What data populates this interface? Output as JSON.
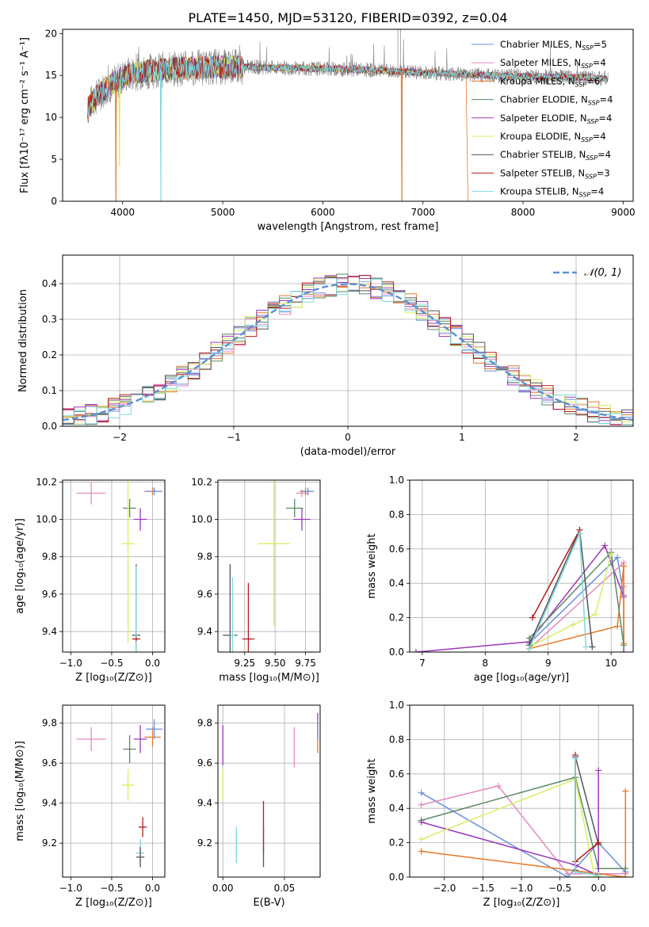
{
  "title": "PLATE=1450, MJD=53120, FIBERID=0392, z=0.04",
  "colors": {
    "chabrier_miles": "#6a8fdc",
    "salpeter_miles": "#e58ac0",
    "kroupa_miles": "#e67a2a",
    "chabrier_elodie": "#5c8a66",
    "salpeter_elodie": "#9a39b8",
    "kroupa_elodie": "#d7ef5e",
    "chabrier_stelib": "#555555",
    "salpeter_stelib": "#b81c1c",
    "kroupa_stelib": "#7ed8e0",
    "observed": "#808080",
    "normal": "#5b8fd6"
  },
  "chart_data": [
    {
      "id": "spectrum",
      "type": "line",
      "xlabel": "wavelength [Angstrom, rest frame]",
      "ylabel": "Flux [fλ10⁻¹⁷ erg cm⁻² s⁻¹ A⁻¹]",
      "xlim": [
        3400,
        9100
      ],
      "ylim": [
        0,
        20.5
      ],
      "xticks": [
        "4000",
        "5000",
        "6000",
        "7000",
        "8000",
        "9000"
      ],
      "yticks": [
        "0",
        "5",
        "10",
        "15",
        "20"
      ],
      "grid": false,
      "legend_position": "top-right",
      "legend": [
        {
          "label": "Chabrier MILES, N",
          "sub": "SSP",
          "tail": "=5",
          "color": "chabrier_miles"
        },
        {
          "label": "Salpeter MILES, N",
          "sub": "SSP",
          "tail": "=4",
          "color": "salpeter_miles"
        },
        {
          "label": "Kroupa MILES, N",
          "sub": "SSP",
          "tail": "=6",
          "color": "kroupa_miles"
        },
        {
          "label": "Chabrier ELODIE, N",
          "sub": "SSP",
          "tail": "=4",
          "color": "chabrier_elodie"
        },
        {
          "label": "Salpeter ELODIE, N",
          "sub": "SSP",
          "tail": "=4",
          "color": "salpeter_elodie"
        },
        {
          "label": "Kroupa ELODIE, N",
          "sub": "SSP",
          "tail": "=4",
          "color": "kroupa_elodie"
        },
        {
          "label": "Chabrier STELIB, N",
          "sub": "SSP",
          "tail": "=4",
          "color": "chabrier_stelib"
        },
        {
          "label": "Salpeter STELIB, N",
          "sub": "SSP",
          "tail": "=3",
          "color": "salpeter_stelib"
        },
        {
          "label": "Kroupa STELIB, N",
          "sub": "SSP",
          "tail": "=4",
          "color": "kroupa_stelib"
        }
      ],
      "continuum": {
        "x": [
          3650,
          3700,
          3800,
          3900,
          4000,
          4100,
          4300,
          4500,
          4700,
          4900,
          5100,
          5300,
          5500,
          5700,
          5900,
          6100,
          6300,
          6500,
          6700,
          6900,
          7100,
          7300,
          7500,
          7700,
          7900,
          8100,
          8300,
          8500,
          8700,
          8850
        ],
        "y": [
          11.0,
          12.0,
          13.2,
          14.0,
          14.8,
          15.3,
          15.6,
          15.8,
          15.9,
          16.0,
          16.0,
          16.0,
          15.9,
          15.9,
          15.8,
          15.8,
          15.7,
          15.6,
          15.5,
          15.4,
          15.3,
          15.2,
          15.1,
          15.0,
          14.9,
          14.9,
          14.8,
          14.8,
          14.7,
          14.6
        ]
      },
      "absorption_lines": [
        {
          "model": "kroupa_miles",
          "x": 3933,
          "y_min": 0
        },
        {
          "model": "kroupa_elodie",
          "x": 3970,
          "y_min": 4.2
        },
        {
          "model": "kroupa_stelib",
          "x": 4382,
          "y_min": 0
        },
        {
          "model": "kroupa_miles",
          "x": 6790,
          "y_min": 0
        }
      ],
      "cutoffs": [
        {
          "model": "kroupa_miles",
          "x": 7430
        }
      ]
    },
    {
      "id": "residuals",
      "type": "line",
      "xlabel": "(data-model)/error",
      "ylabel": "Normed distribution",
      "xlim": [
        -2.5,
        2.5
      ],
      "ylim": [
        0,
        0.48
      ],
      "xticks": [
        "−2",
        "−1",
        "0",
        "1",
        "2"
      ],
      "yticks": [
        "0.0",
        "0.1",
        "0.2",
        "0.3",
        "0.4"
      ],
      "grid": true,
      "legend_position": "top-right",
      "legend_label": "𝒩(0, 1)",
      "bin_width": 0.1,
      "normal_curve": {
        "mean": 0,
        "sigma": 1
      }
    },
    {
      "id": "age_vs_Z",
      "type": "scatter",
      "xlabel": "Z [log₁₀(Z/Z⊙)]",
      "ylabel": "age  [log₁₀(age/yr)]",
      "xlim": [
        -1.1,
        0.15
      ],
      "ylim": [
        9.29,
        10.21
      ],
      "xticks": [
        "−1.0",
        "−0.5",
        "0.0"
      ],
      "yticks": [
        "9.4",
        "9.6",
        "9.8",
        "10.0",
        "10.2"
      ],
      "grid": true,
      "points": [
        {
          "model": "salpeter_miles",
          "x": -0.75,
          "y": 10.14,
          "xerr": 0.18,
          "yerr": 0.06
        },
        {
          "model": "chabrier_elodie",
          "x": -0.28,
          "y": 10.06,
          "xerr": 0.08,
          "yerr": 0.05
        },
        {
          "model": "salpeter_elodie",
          "x": -0.15,
          "y": 10.0,
          "xerr": 0.08,
          "yerr": 0.06
        },
        {
          "model": "kroupa_elodie",
          "x": -0.3,
          "y": 9.87,
          "xerr": 0.08,
          "yerr": 0.53
        },
        {
          "model": "chabrier_stelib",
          "x": -0.2,
          "y": 9.38,
          "xerr": 0.05,
          "yerr": 0.38
        },
        {
          "model": "kroupa_stelib",
          "x": -0.2,
          "y": 9.37,
          "xerr": 0.0,
          "yerr": 0.38
        },
        {
          "model": "kroupa_miles",
          "x": 0.0,
          "y": 10.15,
          "xerr": 0.1,
          "yerr": 0.02
        },
        {
          "model": "chabrier_miles",
          "x": 0.02,
          "y": 10.15,
          "xerr": 0.1,
          "yerr": 0.02
        },
        {
          "model": "salpeter_stelib",
          "x": -0.2,
          "y": 9.36,
          "xerr": 0.05,
          "yerr": 0.01
        }
      ]
    },
    {
      "id": "age_vs_mass",
      "type": "scatter",
      "xlabel": "mass [log₁₀(M/M⊙)]",
      "ylabel": "",
      "xlim": [
        9.03,
        9.87
      ],
      "ylim": [
        9.29,
        10.21
      ],
      "xticks": [
        "9.25",
        "9.50",
        "9.75"
      ],
      "yticks": [
        "9.4",
        "9.6",
        "9.8",
        "10.0",
        "10.2"
      ],
      "grid": true,
      "points": [
        {
          "model": "salpeter_miles",
          "x": 9.72,
          "y": 10.14,
          "xerr": 0.05,
          "yerr": 0.02
        },
        {
          "model": "chabrier_elodie",
          "x": 9.66,
          "y": 10.06,
          "xerr": 0.07,
          "yerr": 0.05
        },
        {
          "model": "salpeter_elodie",
          "x": 9.72,
          "y": 10.0,
          "xerr": 0.07,
          "yerr": 0.06
        },
        {
          "model": "kroupa_elodie",
          "x": 9.49,
          "y": 9.87,
          "xerr": 0.13,
          "yerr": 0.44
        },
        {
          "model": "chabrier_stelib",
          "x": 9.13,
          "y": 9.38,
          "xerr": 0.06,
          "yerr": 0.38
        },
        {
          "model": "kroupa_stelib",
          "x": 9.15,
          "y": 9.38,
          "xerr": 0.02,
          "yerr": 0.31
        },
        {
          "model": "salpeter_stelib",
          "x": 9.28,
          "y": 9.36,
          "xerr": 0.05,
          "yerr": 0.3
        },
        {
          "model": "kroupa_miles",
          "x": 9.75,
          "y": 10.15,
          "xerr": 0.05,
          "yerr": 0.02
        },
        {
          "model": "chabrier_miles",
          "x": 9.77,
          "y": 10.15,
          "xerr": 0.05,
          "yerr": 0.02
        }
      ]
    },
    {
      "id": "weight_vs_age",
      "type": "line",
      "xlabel": "age  [log₁₀(age/yr)]",
      "ylabel": "mass weight",
      "xlim": [
        6.8,
        10.35
      ],
      "ylim": [
        0,
        1
      ],
      "xticks": [
        "7",
        "8",
        "9",
        "10"
      ],
      "yticks": [
        "0.0",
        "0.2",
        "0.4",
        "0.6",
        "0.8",
        "1.0"
      ],
      "grid": true,
      "series": [
        {
          "model": "salpeter_elodie",
          "x": [
            6.9,
            8.7,
            9.9,
            10.2,
            10.2
          ],
          "y": [
            0.0,
            0.06,
            0.62,
            0.32,
            0.0
          ]
        },
        {
          "model": "chabrier_miles",
          "x": [
            8.7,
            10.1,
            10.2
          ],
          "y": [
            0.05,
            0.55,
            0.33
          ]
        },
        {
          "model": "salpeter_miles",
          "x": [
            8.7,
            10.2,
            10.2
          ],
          "y": [
            0.02,
            0.52,
            0.38
          ]
        },
        {
          "model": "kroupa_miles",
          "x": [
            8.7,
            10.1,
            10.2,
            10.2
          ],
          "y": [
            0.02,
            0.15,
            0.5,
            0.05
          ]
        },
        {
          "model": "chabrier_elodie",
          "x": [
            8.7,
            10.0,
            10.2
          ],
          "y": [
            0.08,
            0.58,
            0.04
          ]
        },
        {
          "model": "kroupa_elodie",
          "x": [
            8.75,
            9.4,
            9.75,
            10.0
          ],
          "y": [
            0.04,
            0.16,
            0.22,
            0.57
          ]
        },
        {
          "model": "chabrier_stelib",
          "x": [
            8.7,
            9.5,
            9.7
          ],
          "y": [
            0.04,
            0.71,
            0.03
          ]
        },
        {
          "model": "salpeter_stelib",
          "x": [
            8.75,
            9.5
          ],
          "y": [
            0.2,
            0.71
          ]
        },
        {
          "model": "kroupa_stelib",
          "x": [
            8.7,
            9.5,
            9.6
          ],
          "y": [
            0.02,
            0.69,
            0.03
          ]
        }
      ]
    },
    {
      "id": "mass_vs_Z",
      "type": "scatter",
      "xlabel": "Z [log₁₀(Z/Z⊙)]",
      "ylabel": "mass [log₁₀(M/M⊙)]",
      "xlim": [
        -1.1,
        0.15
      ],
      "ylim": [
        9.03,
        9.89
      ],
      "xticks": [
        "−1.0",
        "−0.5",
        "0.0"
      ],
      "yticks": [
        "9.2",
        "9.4",
        "9.6",
        "9.8"
      ],
      "grid": true,
      "points": [
        {
          "model": "salpeter_miles",
          "x": -0.75,
          "y": 9.72,
          "xerr": 0.18,
          "yerr": 0.06
        },
        {
          "model": "chabrier_elodie",
          "x": -0.28,
          "y": 9.67,
          "xerr": 0.08,
          "yerr": 0.07
        },
        {
          "model": "salpeter_elodie",
          "x": -0.15,
          "y": 9.72,
          "xerr": 0.08,
          "yerr": 0.07
        },
        {
          "model": "kroupa_elodie",
          "x": -0.3,
          "y": 9.49,
          "xerr": 0.08,
          "yerr": 0.08
        },
        {
          "model": "kroupa_miles",
          "x": 0.0,
          "y": 9.73,
          "xerr": 0.1,
          "yerr": 0.05
        },
        {
          "model": "chabrier_miles",
          "x": 0.02,
          "y": 9.77,
          "xerr": 0.1,
          "yerr": 0.05
        },
        {
          "model": "salpeter_stelib",
          "x": -0.12,
          "y": 9.28,
          "xerr": 0.05,
          "yerr": 0.05
        },
        {
          "model": "kroupa_stelib",
          "x": -0.15,
          "y": 9.15,
          "xerr": 0.05,
          "yerr": 0.07
        },
        {
          "model": "chabrier_stelib",
          "x": -0.15,
          "y": 9.13,
          "xerr": 0.05,
          "yerr": 0.05
        }
      ]
    },
    {
      "id": "mass_vs_ebv",
      "type": "scatter",
      "xlabel": "E(B-V)",
      "ylabel": "",
      "xlim": [
        -0.004,
        0.079
      ],
      "ylim": [
        9.03,
        9.89
      ],
      "xticks": [
        "0.00",
        "0.05"
      ],
      "yticks": [
        "9.2",
        "9.4",
        "9.6",
        "9.8"
      ],
      "grid": true,
      "points": [
        {
          "model": "salpeter_elodie",
          "x": 0.0,
          "y": 9.69,
          "xerr": 0.0,
          "yerr": 0.1
        },
        {
          "model": "kroupa_elodie",
          "x": 0.0,
          "y": 9.49,
          "xerr": 0.0,
          "yerr": 0.08
        },
        {
          "model": "kroupa_stelib",
          "x": 0.011,
          "y": 9.19,
          "xerr": 0.0,
          "yerr": 0.09
        },
        {
          "model": "salpeter_stelib",
          "x": 0.033,
          "y": 9.28,
          "xerr": 0.0,
          "yerr": 0.13
        },
        {
          "model": "chabrier_stelib",
          "x": 0.033,
          "y": 9.18,
          "xerr": 0.0,
          "yerr": 0.1
        },
        {
          "model": "salpeter_miles",
          "x": 0.058,
          "y": 9.68,
          "xerr": 0.0,
          "yerr": 0.1
        },
        {
          "model": "salpeter_elodie",
          "x": 0.077,
          "y": 9.8,
          "xerr": 0.0,
          "yerr": 0.05
        },
        {
          "model": "kroupa_miles",
          "x": 0.077,
          "y": 9.73,
          "xerr": 0.0,
          "yerr": 0.08
        },
        {
          "model": "chabrier_miles",
          "x": 0.077,
          "y": 9.77,
          "xerr": 0.0,
          "yerr": 0.05
        }
      ]
    },
    {
      "id": "weight_vs_Z",
      "type": "line",
      "xlabel": "Z [log₁₀(Z/Z⊙)]",
      "ylabel": "mass weight",
      "xlim": [
        -2.45,
        0.45
      ],
      "ylim": [
        0,
        1
      ],
      "xticks": [
        "−2.0",
        "−1.5",
        "−1.0",
        "−0.5",
        "0.0"
      ],
      "yticks": [
        "0.0",
        "0.2",
        "0.4",
        "0.6",
        "0.8",
        "1.0"
      ],
      "grid": true,
      "series": [
        {
          "model": "chabrier_miles",
          "x": [
            -2.3,
            -0.4,
            0.0,
            0.35
          ],
          "y": [
            0.49,
            0.0,
            0.2,
            0.03
          ]
        },
        {
          "model": "salpeter_miles",
          "x": [
            -2.3,
            -1.3,
            -0.4,
            0.35
          ],
          "y": [
            0.42,
            0.53,
            0.02,
            0.02
          ]
        },
        {
          "model": "kroupa_miles",
          "x": [
            -2.3,
            -2.3,
            0.35,
            0.35
          ],
          "y": [
            0.15,
            0.15,
            0.0,
            0.5
          ]
        },
        {
          "model": "chabrier_elodie",
          "x": [
            -2.3,
            -0.3,
            0.0,
            0.35
          ],
          "y": [
            0.33,
            0.58,
            0.05,
            0.05
          ]
        },
        {
          "model": "salpeter_elodie",
          "x": [
            -2.3,
            -0.3,
            0.0,
            0.0
          ],
          "y": [
            0.32,
            0.07,
            0.01,
            0.62
          ]
        },
        {
          "model": "kroupa_elodie",
          "x": [
            -2.3,
            -0.3,
            -0.05,
            0.0
          ],
          "y": [
            0.22,
            0.57,
            0.0,
            0.01
          ]
        },
        {
          "model": "chabrier_stelib",
          "x": [
            -0.3,
            -0.3,
            0.0
          ],
          "y": [
            0.04,
            0.7,
            0.19
          ]
        },
        {
          "model": "salpeter_stelib",
          "x": [
            -0.3,
            -0.3,
            0.0
          ],
          "y": [
            0.71,
            0.09,
            0.2
          ]
        },
        {
          "model": "kroupa_stelib",
          "x": [
            -0.3,
            -0.3,
            0.0
          ],
          "y": [
            0.69,
            0.03,
            0.01
          ]
        }
      ]
    }
  ]
}
